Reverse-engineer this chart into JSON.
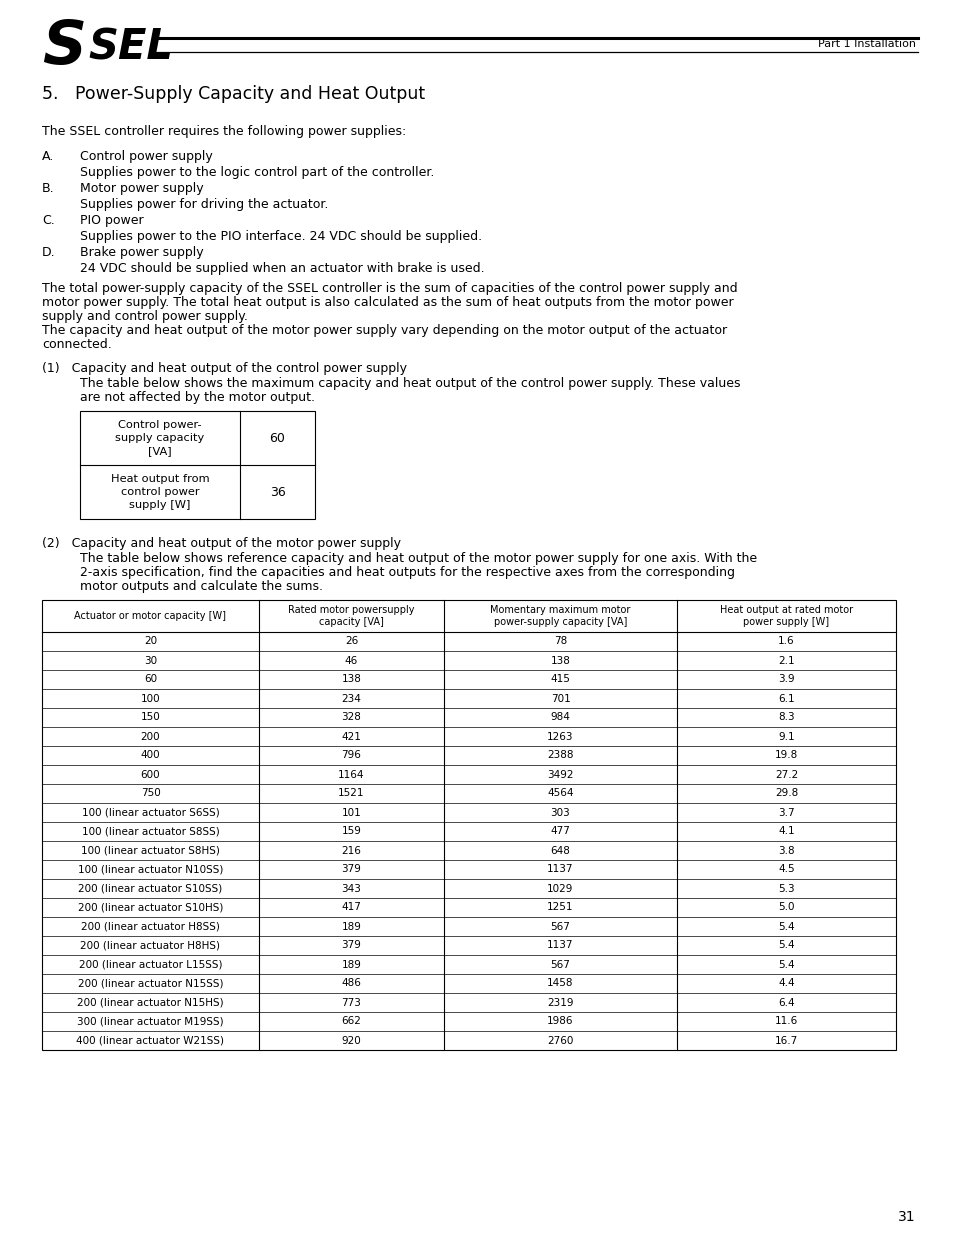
{
  "header_right": "Part 1 Installation",
  "page_number": "31",
  "title_section": "5.   Power-Supply Capacity and Heat Output",
  "intro_text": "The SSEL controller requires the following power supplies:",
  "list_items": [
    [
      "A.",
      "Control power supply",
      "Supplies power to the logic control part of the controller."
    ],
    [
      "B.",
      "Motor power supply",
      "Supplies power for driving the actuator."
    ],
    [
      "C.",
      "PIO power",
      "Supplies power to the PIO interface. 24 VDC should be supplied."
    ],
    [
      "D.",
      "Brake power supply",
      "24 VDC should be supplied when an actuator with brake is used."
    ]
  ],
  "para1_lines": [
    "The total power-supply capacity of the SSEL controller is the sum of capacities of the control power supply and",
    "motor power supply. The total heat output is also calculated as the sum of heat outputs from the motor power",
    "supply and control power supply.",
    "The capacity and heat output of the motor power supply vary depending on the motor output of the actuator",
    "connected."
  ],
  "section1_title": "(1)   Capacity and heat output of the control power supply",
  "section1_lines": [
    "The table below shows the maximum capacity and heat output of the control power supply. These values",
    "are not affected by the motor output."
  ],
  "small_table_row1_label": "Control power-\nsupply capacity\n[VA]",
  "small_table_row1_val": "60",
  "small_table_row2_label": "Heat output from\ncontrol power\nsupply [W]",
  "small_table_row2_val": "36",
  "section2_title": "(2)   Capacity and heat output of the motor power supply",
  "section2_lines": [
    "The table below shows reference capacity and heat output of the motor power supply for one axis. With the",
    "2-axis specification, find the capacities and heat outputs for the respective axes from the corresponding",
    "motor outputs and calculate the sums."
  ],
  "big_table_headers": [
    "Actuator or motor capacity [W]",
    "Rated motor powersupply\ncapacity [VA]",
    "Momentary maximum motor\npower-supply capacity [VA]",
    "Heat output at rated motor\npower supply [W]"
  ],
  "big_table_rows": [
    [
      "20",
      "26",
      "78",
      "1.6"
    ],
    [
      "30",
      "46",
      "138",
      "2.1"
    ],
    [
      "60",
      "138",
      "415",
      "3.9"
    ],
    [
      "100",
      "234",
      "701",
      "6.1"
    ],
    [
      "150",
      "328",
      "984",
      "8.3"
    ],
    [
      "200",
      "421",
      "1263",
      "9.1"
    ],
    [
      "400",
      "796",
      "2388",
      "19.8"
    ],
    [
      "600",
      "1164",
      "3492",
      "27.2"
    ],
    [
      "750",
      "1521",
      "4564",
      "29.8"
    ],
    [
      "100 (linear actuator S6SS)",
      "101",
      "303",
      "3.7"
    ],
    [
      "100 (linear actuator S8SS)",
      "159",
      "477",
      "4.1"
    ],
    [
      "100 (linear actuator S8HS)",
      "216",
      "648",
      "3.8"
    ],
    [
      "100 (linear actuator N10SS)",
      "379",
      "1137",
      "4.5"
    ],
    [
      "200 (linear actuator S10SS)",
      "343",
      "1029",
      "5.3"
    ],
    [
      "200 (linear actuator S10HS)",
      "417",
      "1251",
      "5.0"
    ],
    [
      "200 (linear actuator H8SS)",
      "189",
      "567",
      "5.4"
    ],
    [
      "200 (linear actuator H8HS)",
      "379",
      "1137",
      "5.4"
    ],
    [
      "200 (linear actuator L15SS)",
      "189",
      "567",
      "5.4"
    ],
    [
      "200 (linear actuator N15SS)",
      "486",
      "1458",
      "4.4"
    ],
    [
      "200 (linear actuator N15HS)",
      "773",
      "2319",
      "6.4"
    ],
    [
      "300 (linear actuator M19SS)",
      "662",
      "1986",
      "11.6"
    ],
    [
      "400 (linear actuator W21SS)",
      "920",
      "2760",
      "16.7"
    ]
  ]
}
